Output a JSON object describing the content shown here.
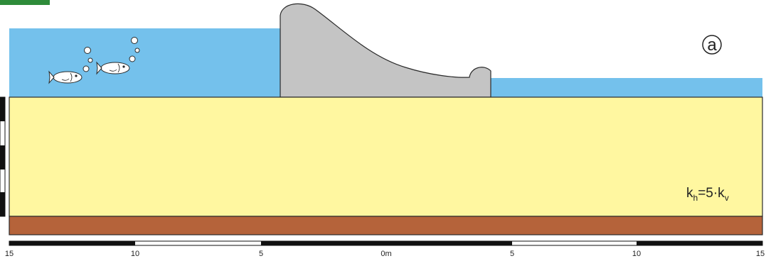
{
  "figure": {
    "panel_label": "a",
    "coefficient": {
      "k1": "k",
      "sub1": "h",
      "middle": "=5·k",
      "sub2": "v"
    }
  },
  "scale_bar": {
    "ticks": [
      "15",
      "10",
      "5",
      "0m",
      "5",
      "10",
      "15"
    ]
  },
  "colors": {
    "water": "#74c1ec",
    "soil": "#fff7a0",
    "bedrock": "#b5633a",
    "dam": "#c4c4c4",
    "outline": "#2a2a2a",
    "badge": "#2e8b3a"
  },
  "icons": [
    "fish-icon",
    "air-bubble-icon"
  ]
}
